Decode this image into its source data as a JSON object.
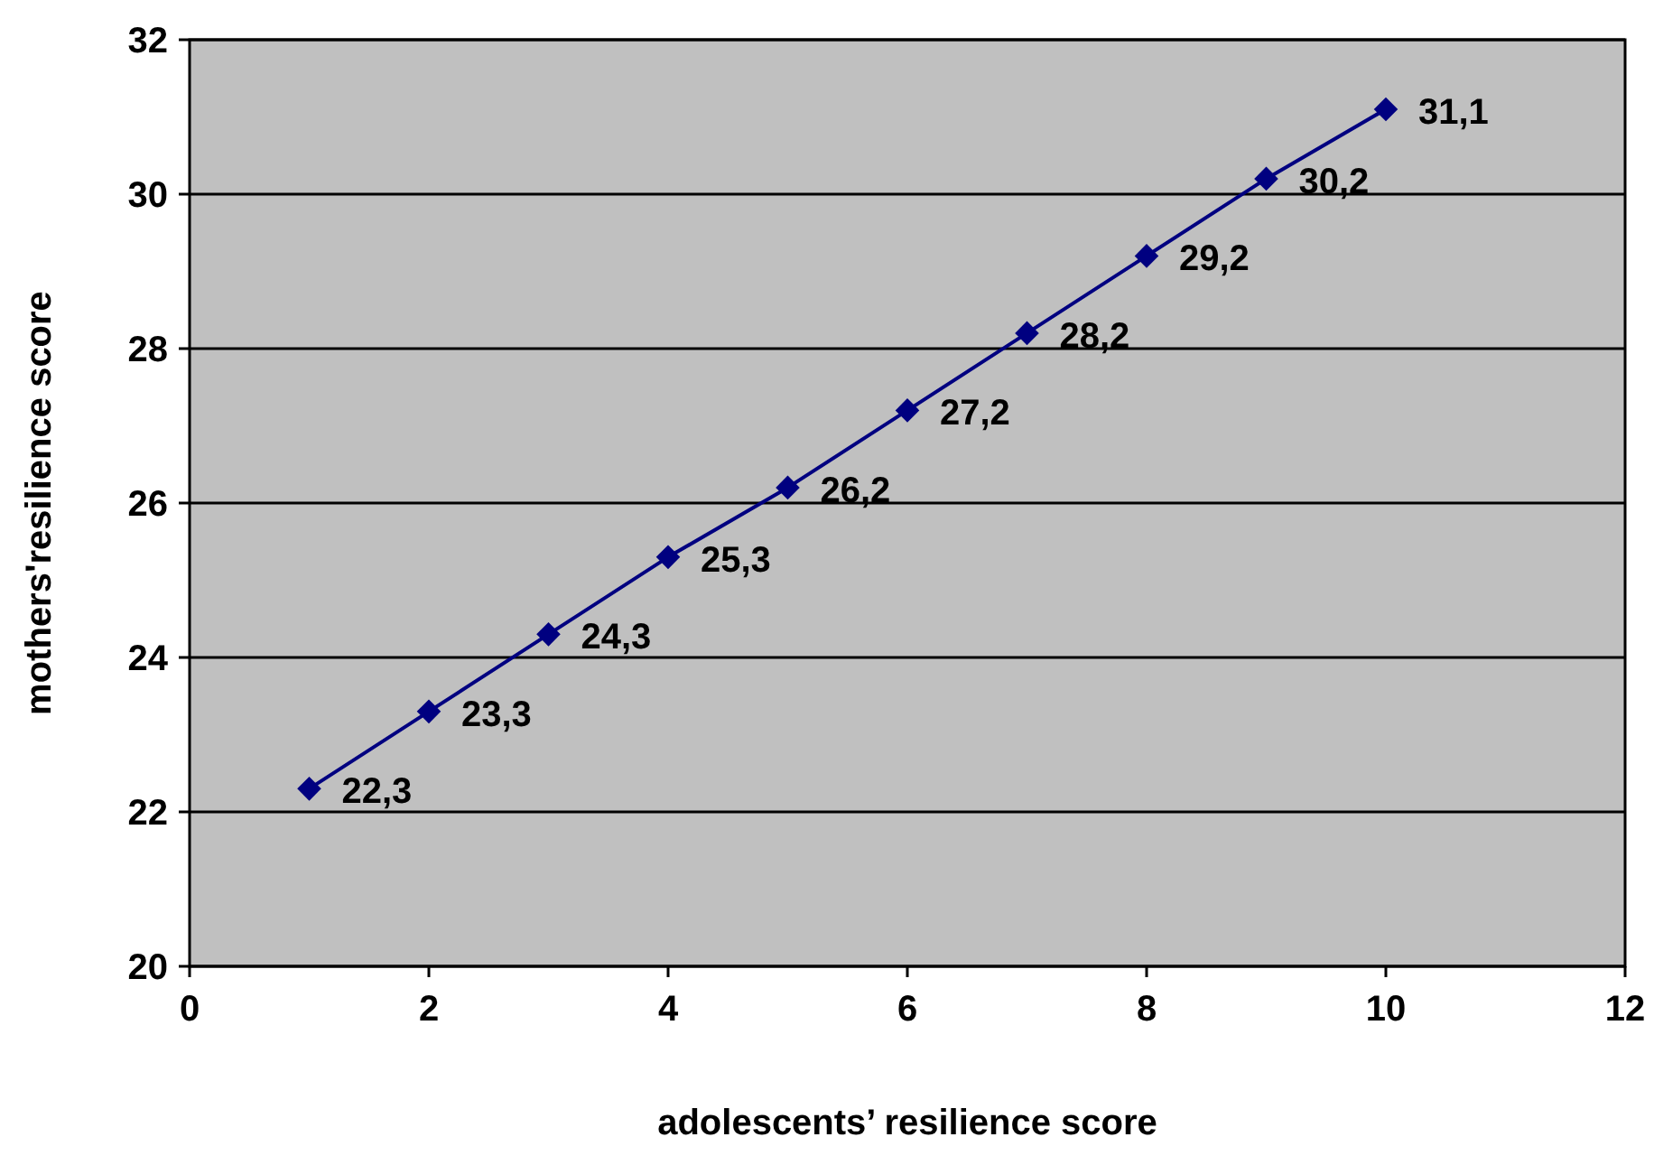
{
  "chart_data": {
    "type": "line",
    "xlabel": "adolescents’ resilience score",
    "ylabel": "mothers'resilience score",
    "x": [
      1,
      2,
      3,
      4,
      5,
      6,
      7,
      8,
      9,
      10
    ],
    "series": [
      {
        "color": "#000080",
        "values": [
          22.3,
          23.3,
          24.3,
          25.3,
          26.2,
          27.2,
          28.2,
          29.2,
          30.2,
          31.1
        ],
        "value_labels": [
          "22,3",
          "23,3",
          "24,3",
          "25,3",
          "26,2",
          "27,2",
          "28,2",
          "29,2",
          "30,2",
          "31,1"
        ]
      }
    ],
    "xlim": [
      0,
      12
    ],
    "xticks": [
      0,
      2,
      4,
      6,
      8,
      10,
      12
    ],
    "ylim": [
      20,
      32
    ],
    "yticks": [
      20,
      22,
      24,
      26,
      28,
      30,
      32
    ],
    "grid": "y",
    "marker": "diamond",
    "line_style": "solid"
  }
}
